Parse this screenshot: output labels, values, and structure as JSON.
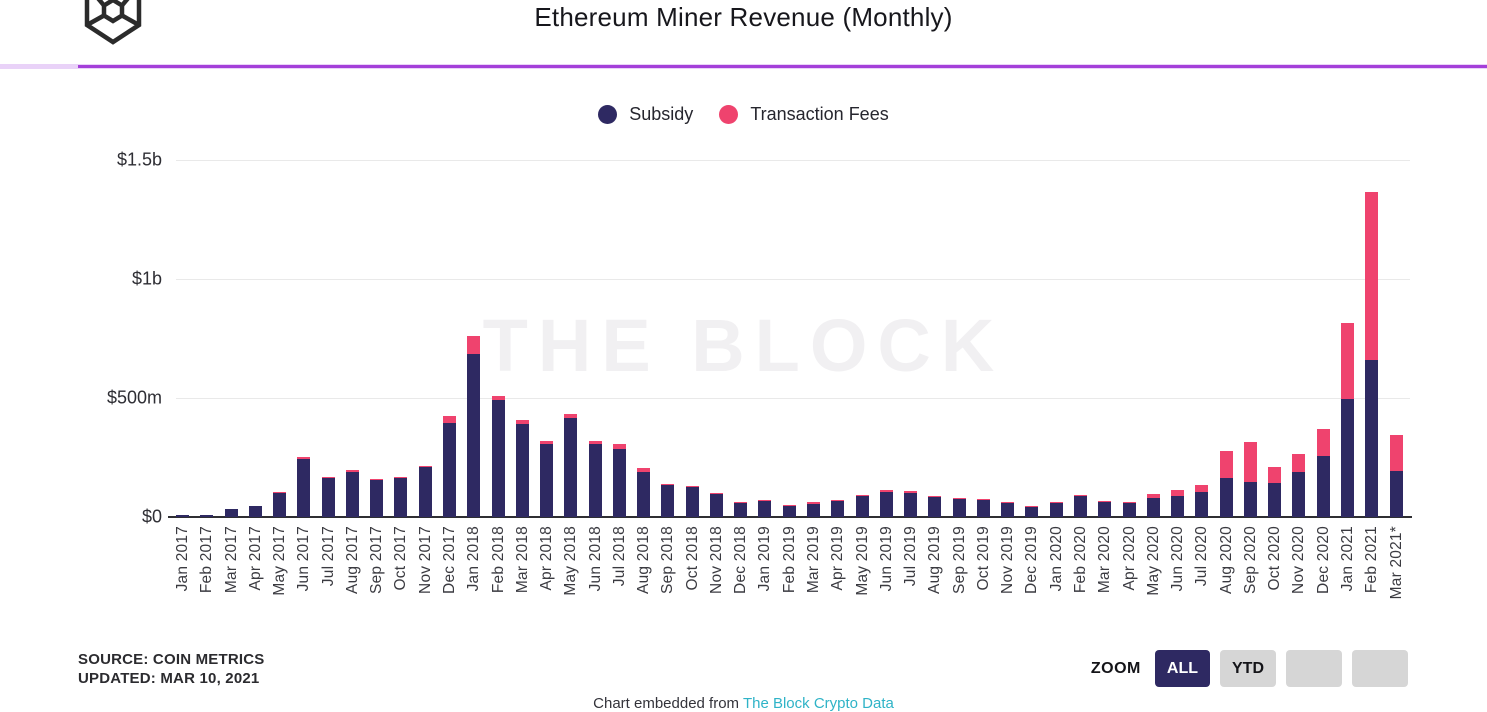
{
  "header": {
    "title": "Ethereum Miner Revenue (Monthly)",
    "logo_name": "the-block-logo",
    "accent_line_color": "#a43fd9"
  },
  "watermark": "THE BLOCK",
  "chart_data": {
    "type": "bar",
    "stacked": true,
    "title": "Ethereum Miner Revenue (Monthly)",
    "xlabel": "",
    "ylabel": "",
    "ylim": [
      0,
      1500
    ],
    "grid": true,
    "legend_position": "top-center",
    "yticks": [
      {
        "label": "$1.5b",
        "value": 1500
      },
      {
        "label": "$1b",
        "value": 1000
      },
      {
        "label": "$500m",
        "value": 500
      },
      {
        "label": "$0",
        "value": 0
      }
    ],
    "unit": "$ millions",
    "categories": [
      "Jan 2017",
      "Feb 2017",
      "Mar 2017",
      "Apr 2017",
      "May 2017",
      "Jun 2017",
      "Jul 2017",
      "Aug 2017",
      "Sep 2017",
      "Oct 2017",
      "Nov 2017",
      "Dec 2017",
      "Jan 2018",
      "Feb 2018",
      "Mar 2018",
      "Apr 2018",
      "May 2018",
      "Jun 2018",
      "Jul 2018",
      "Aug 2018",
      "Sep 2018",
      "Oct 2018",
      "Nov 2018",
      "Dec 2018",
      "Jan 2019",
      "Feb 2019",
      "Mar 2019",
      "Apr 2019",
      "May 2019",
      "Jun 2019",
      "Jul 2019",
      "Aug 2019",
      "Sep 2019",
      "Oct 2019",
      "Nov 2019",
      "Dec 2019",
      "Jan 2020",
      "Feb 2020",
      "Mar 2020",
      "Apr 2020",
      "May 2020",
      "Jun 2020",
      "Jul 2020",
      "Aug 2020",
      "Sep 2020",
      "Oct 2020",
      "Nov 2020",
      "Dec 2020",
      "Jan 2021",
      "Feb 2021",
      "Mar 2021*"
    ],
    "series": [
      {
        "name": "Subsidy",
        "color": "#2e2962",
        "values": [
          8,
          8,
          33,
          46,
          100,
          244,
          163,
          188,
          154,
          163,
          208,
          396,
          683,
          492,
          392,
          308,
          417,
          308,
          287,
          188,
          133,
          125,
          96,
          60,
          67,
          46,
          56,
          67,
          88,
          104,
          100,
          83,
          75,
          71,
          58,
          42,
          58,
          88,
          63,
          58,
          79,
          88,
          104,
          163,
          146,
          142,
          188,
          258,
          496,
          660,
          192
        ]
      },
      {
        "name": "Transaction Fees",
        "color": "#ef436e",
        "values": [
          0,
          0,
          1,
          2,
          4,
          10,
          4,
          8,
          4,
          4,
          5,
          29,
          75,
          17,
          17,
          13,
          17,
          13,
          21,
          17,
          5,
          4,
          4,
          3,
          4,
          4,
          7,
          4,
          4,
          9,
          8,
          5,
          4,
          4,
          5,
          4,
          5,
          4,
          4,
          5,
          17,
          25,
          29,
          113,
          167,
          67,
          75,
          113,
          321,
          705,
          150
        ]
      }
    ]
  },
  "footer": {
    "source_line1": "SOURCE: COIN METRICS",
    "source_line2": "UPDATED: MAR 10, 2021",
    "attribution_prefix": "Chart embedded from ",
    "attribution_link": "The Block Crypto Data"
  },
  "zoom_controls": {
    "label": "ZOOM",
    "buttons": [
      {
        "label": "ALL",
        "active": true
      },
      {
        "label": "YTD",
        "active": false
      },
      {
        "label": "",
        "active": false
      },
      {
        "label": "",
        "active": false
      }
    ]
  }
}
